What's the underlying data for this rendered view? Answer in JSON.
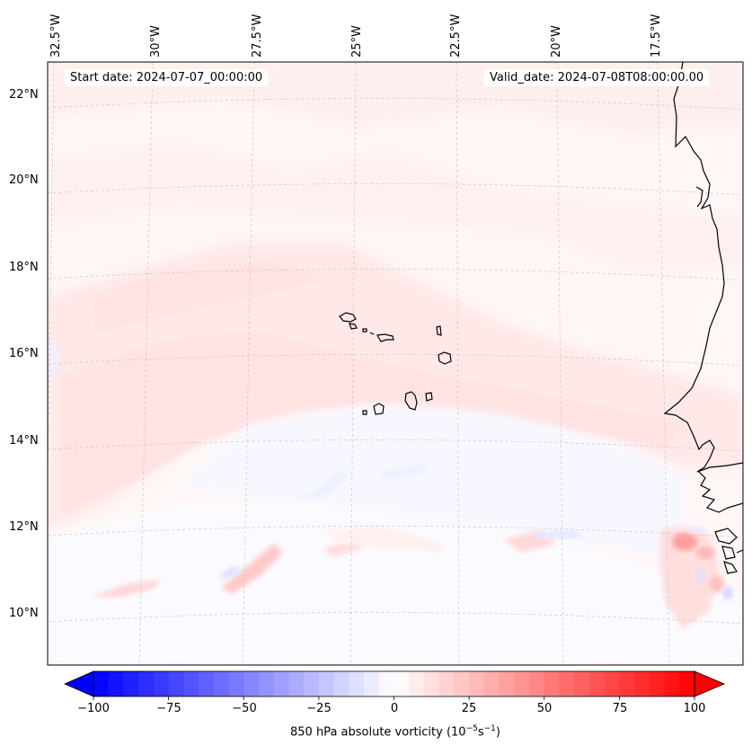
{
  "map": {
    "projection": "Lambert conformal",
    "extent": {
      "lon_west": -33,
      "lon_east": -15,
      "lat_south": 9,
      "lat_north": 23
    },
    "start_date": "Start date: 2024-07-07_00:00:00",
    "valid_date": "Valid_date: 2024-07-08T08:00:00.00",
    "lon_labels": [
      "32.5°W",
      "30°W",
      "27.5°W",
      "25°W",
      "22.5°W",
      "20°W",
      "17.5°W"
    ],
    "lat_labels": [
      "22°N",
      "20°N",
      "18°N",
      "16°N",
      "14°N",
      "12°N",
      "10°N"
    ],
    "features": [
      "Cape Verde islands",
      "West African coastline"
    ]
  },
  "colorbar": {
    "min": -100,
    "max": 100,
    "ticks": [
      "−100",
      "−75",
      "−50",
      "−25",
      "0",
      "25",
      "50",
      "75",
      "100"
    ],
    "label_main": "850 hPa absolute vorticity (10",
    "label_exp1": "−5",
    "label_mid": "s",
    "label_exp2": "−1",
    "label_end": ")",
    "colors": {
      "low": "#0000ff",
      "mid": "#ffffff",
      "high": "#ff0000"
    }
  }
}
